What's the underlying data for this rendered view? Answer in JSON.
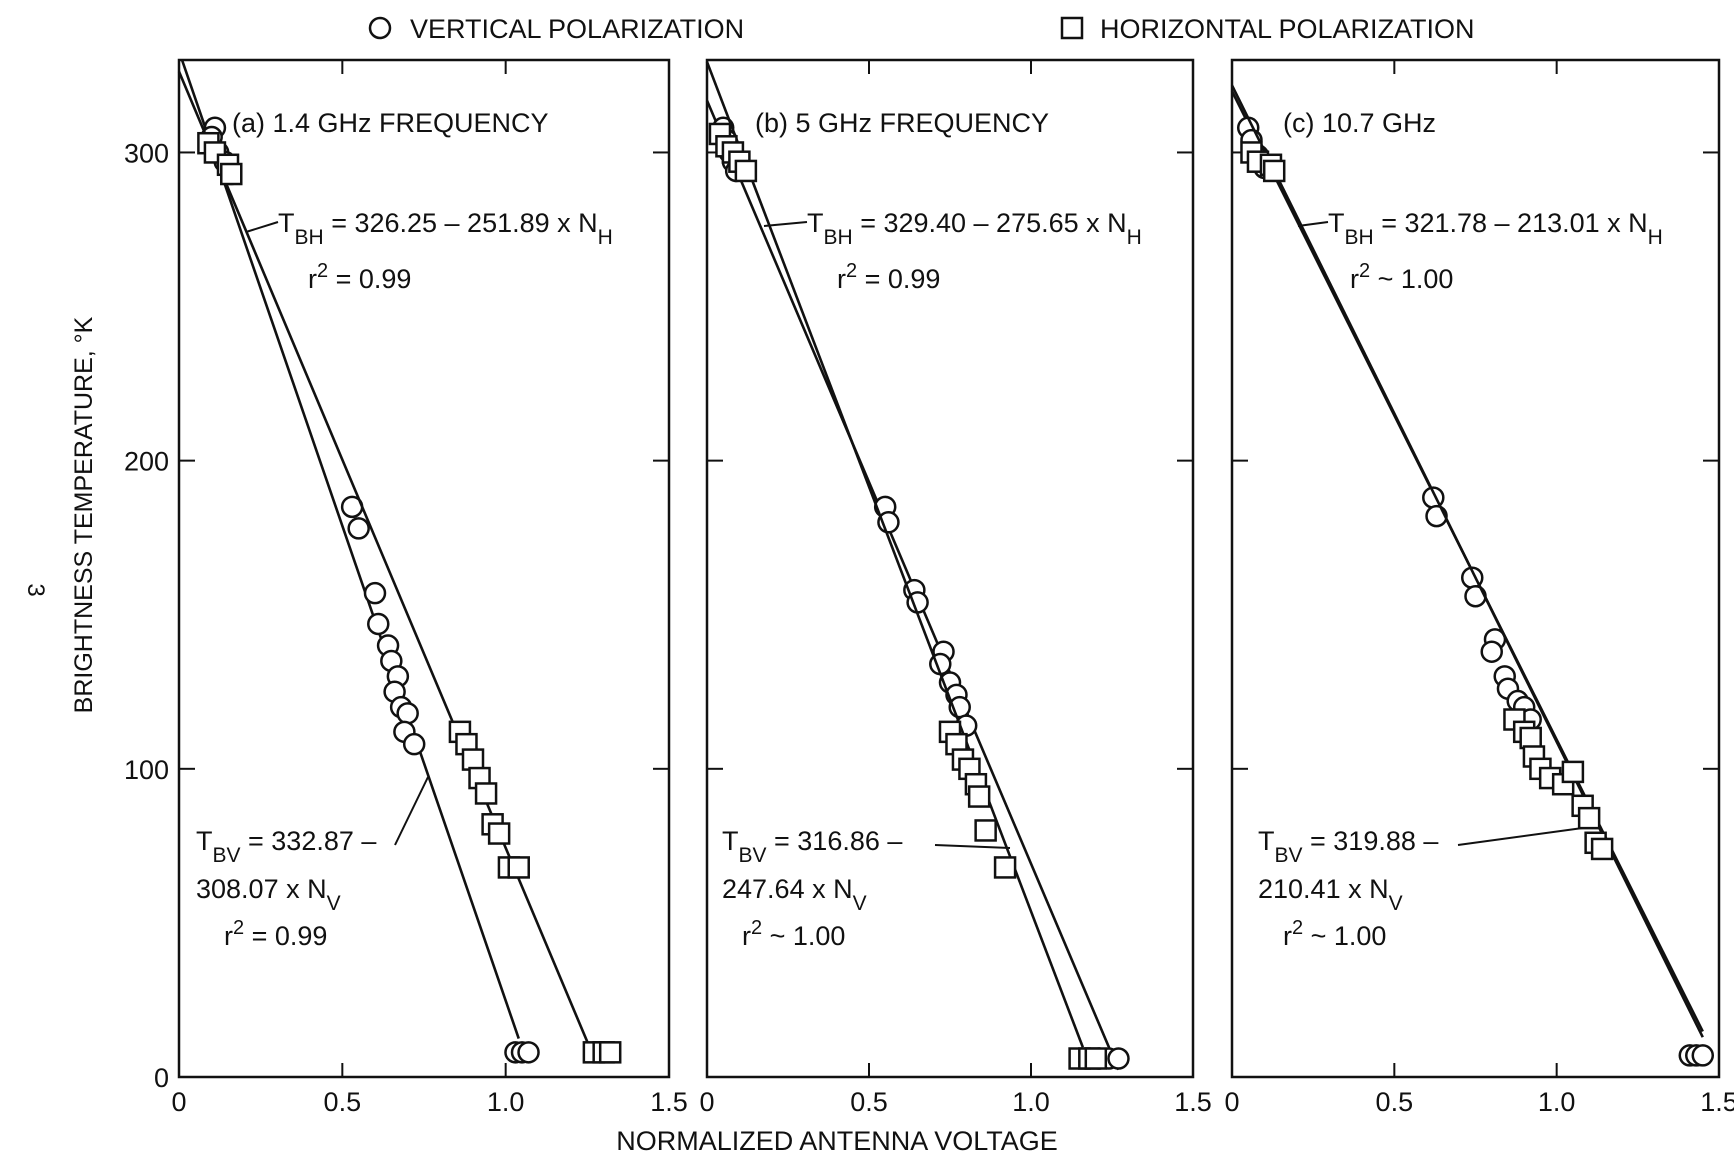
{
  "figure": {
    "legend": {
      "vertical": {
        "marker": "circle",
        "label": "VERTICAL POLARIZATION"
      },
      "horizontal": {
        "marker": "square",
        "label": "HORIZONTAL POLARIZATION"
      }
    },
    "ylabel": "BRIGHTNESS TEMPERATURE, °K",
    "xlabel": "NORMALIZED ANTENNA VOLTAGE",
    "page_mark": "3",
    "colors": {
      "ink": "#111111",
      "background": "#ffffff"
    }
  },
  "chart_data": [
    {
      "type": "scatter",
      "title": "(a) 1.4 GHz FREQUENCY",
      "xlim": [
        0,
        1.5
      ],
      "ylim": [
        0,
        330
      ],
      "xticks": [
        "0",
        "0.5",
        "1.0",
        "1.5"
      ],
      "yticks": [
        "0",
        "100",
        "200",
        "300"
      ],
      "series": [
        {
          "name": "VERTICAL POLARIZATION",
          "marker": "circle",
          "points": [
            [
              0.11,
              308
            ],
            [
              0.1,
              305
            ],
            [
              0.12,
              300
            ],
            [
              0.14,
              297
            ],
            [
              0.16,
              293
            ],
            [
              0.53,
              185
            ],
            [
              0.55,
              178
            ],
            [
              0.6,
              157
            ],
            [
              0.61,
              147
            ],
            [
              0.64,
              140
            ],
            [
              0.65,
              135
            ],
            [
              0.67,
              130
            ],
            [
              0.66,
              125
            ],
            [
              0.68,
              120
            ],
            [
              0.7,
              118
            ],
            [
              0.69,
              112
            ],
            [
              0.72,
              108
            ],
            [
              1.03,
              8
            ],
            [
              1.05,
              8
            ],
            [
              1.07,
              8
            ]
          ],
          "fit": {
            "intercept": 332.87,
            "slope": -308.07,
            "x_end": 1.04
          },
          "equation": {
            "lhs": "T",
            "sub": "BV",
            "rest1": " = 332.87 –",
            "rest2": "308.07 x N",
            "sub2": "V"
          },
          "r2": " = 0.99"
        },
        {
          "name": "HORIZONTAL POLARIZATION",
          "marker": "square",
          "points": [
            [
              0.09,
              303
            ],
            [
              0.11,
              300
            ],
            [
              0.15,
              296
            ],
            [
              0.16,
              293
            ],
            [
              0.86,
              112
            ],
            [
              0.88,
              108
            ],
            [
              0.9,
              103
            ],
            [
              0.92,
              97
            ],
            [
              0.94,
              92
            ],
            [
              0.96,
              82
            ],
            [
              0.98,
              79
            ],
            [
              1.01,
              68
            ],
            [
              1.04,
              68
            ],
            [
              1.27,
              8
            ],
            [
              1.3,
              8
            ],
            [
              1.32,
              8
            ]
          ],
          "fit": {
            "intercept": 326.25,
            "slope": -251.89,
            "x_end": 1.27
          },
          "equation": {
            "lhs": "T",
            "sub": "BH",
            "rest1": " = 326.25 – 251.89 x N",
            "sub2": "H"
          },
          "r2": " = 0.99"
        }
      ]
    },
    {
      "type": "scatter",
      "title": "(b) 5 GHz FREQUENCY",
      "xlim": [
        0,
        1.5
      ],
      "ylim": [
        0,
        330
      ],
      "xticks": [
        "0",
        "0.5",
        "1.0",
        "1.5"
      ],
      "yticks": [
        "0",
        "100",
        "200",
        "300"
      ],
      "series": [
        {
          "name": "VERTICAL POLARIZATION",
          "marker": "circle",
          "points": [
            [
              0.05,
              308
            ],
            [
              0.06,
              304
            ],
            [
              0.07,
              300
            ],
            [
              0.08,
              297
            ],
            [
              0.09,
              294
            ],
            [
              0.55,
              185
            ],
            [
              0.56,
              180
            ],
            [
              0.64,
              158
            ],
            [
              0.65,
              154
            ],
            [
              0.73,
              138
            ],
            [
              0.72,
              134
            ],
            [
              0.75,
              128
            ],
            [
              0.77,
              124
            ],
            [
              0.78,
              120
            ],
            [
              0.8,
              114
            ],
            [
              1.21,
              6
            ],
            [
              1.24,
              6
            ],
            [
              1.27,
              6
            ]
          ],
          "fit": {
            "intercept": 316.86,
            "slope": -247.64,
            "x_end": 1.27
          },
          "equation": {
            "lhs": "T",
            "sub": "BV",
            "rest1": " = 316.86 –",
            "rest2": "247.64 x N",
            "sub2": "V"
          },
          "r2": " ~ 1.00"
        },
        {
          "name": "HORIZONTAL POLARIZATION",
          "marker": "square",
          "points": [
            [
              0.04,
              306
            ],
            [
              0.06,
              302
            ],
            [
              0.08,
              300
            ],
            [
              0.1,
              297
            ],
            [
              0.12,
              294
            ],
            [
              0.75,
              112
            ],
            [
              0.77,
              108
            ],
            [
              0.79,
              103
            ],
            [
              0.81,
              100
            ],
            [
              0.83,
              95
            ],
            [
              0.84,
              91
            ],
            [
              0.86,
              80
            ],
            [
              0.92,
              68
            ],
            [
              1.15,
              6
            ],
            [
              1.18,
              6
            ],
            [
              1.2,
              6
            ]
          ],
          "fit": {
            "intercept": 329.4,
            "slope": -275.65,
            "x_end": 1.16
          },
          "equation": {
            "lhs": "T",
            "sub": "BH",
            "rest1": " = 329.40 – 275.65 x N",
            "sub2": "H"
          },
          "r2": " = 0.99"
        }
      ]
    },
    {
      "type": "scatter",
      "title": "(c) 10.7 GHz",
      "xlim": [
        0,
        1.5
      ],
      "ylim": [
        0,
        330
      ],
      "xticks": [
        "0",
        "0.5",
        "1.0",
        "1.5"
      ],
      "yticks": [
        "0",
        "100",
        "200",
        "300"
      ],
      "series": [
        {
          "name": "VERTICAL POLARIZATION",
          "marker": "circle",
          "points": [
            [
              0.05,
              308
            ],
            [
              0.06,
              304
            ],
            [
              0.08,
              299
            ],
            [
              0.1,
              295
            ],
            [
              0.62,
              188
            ],
            [
              0.63,
              182
            ],
            [
              0.74,
              162
            ],
            [
              0.75,
              156
            ],
            [
              0.81,
              142
            ],
            [
              0.8,
              138
            ],
            [
              0.84,
              130
            ],
            [
              0.85,
              126
            ],
            [
              0.88,
              122
            ],
            [
              0.9,
              120
            ],
            [
              0.92,
              116
            ],
            [
              1.41,
              7
            ],
            [
              1.43,
              7
            ],
            [
              1.45,
              7
            ]
          ],
          "fit": {
            "intercept": 319.88,
            "slope": -210.41,
            "x_end": 1.45
          },
          "equation": {
            "lhs": "T",
            "sub": "BV",
            "rest1": " = 319.88 –",
            "rest2": "210.41 x N",
            "sub2": "V"
          },
          "r2": " ~ 1.00"
        },
        {
          "name": "HORIZONTAL POLARIZATION",
          "marker": "square",
          "points": [
            [
              0.06,
              300
            ],
            [
              0.08,
              297
            ],
            [
              0.12,
              296
            ],
            [
              0.13,
              294
            ],
            [
              0.87,
              116
            ],
            [
              0.9,
              112
            ],
            [
              0.92,
              110
            ],
            [
              0.93,
              104
            ],
            [
              0.95,
              100
            ],
            [
              0.98,
              97
            ],
            [
              1.02,
              95
            ],
            [
              1.05,
              99
            ],
            [
              1.08,
              88
            ],
            [
              1.1,
              84
            ],
            [
              1.12,
              76
            ],
            [
              1.14,
              74
            ]
          ],
          "fit": {
            "intercept": 321.78,
            "slope": -213.01,
            "x_end": 1.45
          },
          "equation": {
            "lhs": "T",
            "sub": "BH",
            "rest1": " = 321.78 – 213.01 x N",
            "sub2": "H"
          },
          "r2": " ~ 1.00"
        }
      ]
    }
  ]
}
